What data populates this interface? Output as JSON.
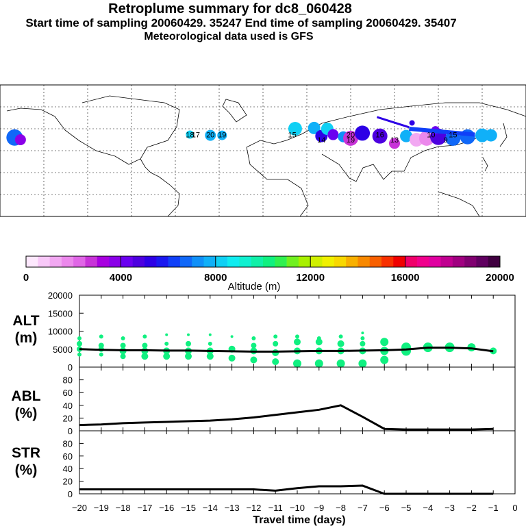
{
  "header": {
    "title": "Retroplume summary for dc8_060428",
    "sampling_line": "Start time of sampling 20060429. 35247     End time of sampling 20060429. 35407",
    "met_line": "Meteorological data used is GFS"
  },
  "colorbar": {
    "tick_labels": [
      "0",
      "4000",
      "8000",
      "12000",
      "16000",
      "20000"
    ],
    "label": "Altitude (m)",
    "colors": [
      "#fde8fd",
      "#f8c8f8",
      "#f2a8f2",
      "#ec88ec",
      "#e066e6",
      "#c833d8",
      "#a800e0",
      "#8a00e8",
      "#6a00f0",
      "#4d00e0",
      "#2d00e6",
      "#1a18f0",
      "#1040f8",
      "#1068f8",
      "#1090f8",
      "#10b0f8",
      "#10d0f4",
      "#10ecf0",
      "#10f0d0",
      "#10f0a8",
      "#10f080",
      "#30f050",
      "#70f020",
      "#a8f000",
      "#d0f000",
      "#f0f000",
      "#f8d800",
      "#f8b000",
      "#f88800",
      "#f86000",
      "#f83000",
      "#f00000",
      "#f0006a",
      "#f0008c",
      "#e000a0",
      "#c00090",
      "#a00080",
      "#800070",
      "#600060",
      "#400040"
    ]
  },
  "panels": {
    "alt_label": "ALT\n(m)",
    "abl_label": "ABL\n(%)",
    "str_label": "STR\n(%)",
    "x_label": "Travel time (days)"
  },
  "map_labels": [
    {
      "t": "18",
      "lon": -50
    },
    {
      "t": "17",
      "lon": -46
    },
    {
      "t": "20",
      "lon": -36
    },
    {
      "t": "19",
      "lon": -28
    },
    {
      "t": "15",
      "lon": 20
    },
    {
      "t": "14",
      "lon": 40
    },
    {
      "t": "20",
      "lon": 60
    },
    {
      "t": "19",
      "lon": 60
    },
    {
      "t": "16",
      "lon": 80
    },
    {
      "t": "13",
      "lon": 90
    },
    {
      "t": "10",
      "lon": 115
    },
    {
      "t": "9",
      "lon": 125
    },
    {
      "t": "15",
      "lon": 130
    }
  ],
  "map_markers": [
    {
      "lon": -170,
      "lat": 18,
      "r": 12,
      "c": "#1068f8"
    },
    {
      "lon": -166,
      "lat": 15,
      "r": 8,
      "c": "#8a00e8"
    },
    {
      "lon": -50,
      "lat": 22,
      "r": 6,
      "c": "#10d0f4"
    },
    {
      "lon": -36,
      "lat": 21,
      "r": 8,
      "c": "#10b0f8"
    },
    {
      "lon": -28,
      "lat": 21,
      "r": 7,
      "c": "#10b0f8"
    },
    {
      "lon": 22,
      "lat": 30,
      "r": 10,
      "c": "#10d0f4"
    },
    {
      "lon": 35,
      "lat": 31,
      "r": 9,
      "c": "#10b0f8"
    },
    {
      "lon": 40,
      "lat": 20,
      "r": 9,
      "c": "#2d00e6"
    },
    {
      "lon": 44,
      "lat": 30,
      "r": 9,
      "c": "#10d0f4"
    },
    {
      "lon": 48,
      "lat": 22,
      "r": 8,
      "c": "#6a00f0"
    },
    {
      "lon": 55,
      "lat": 19,
      "r": 8,
      "c": "#1090f8"
    },
    {
      "lon": 60,
      "lat": 17,
      "r": 11,
      "c": "#c833d8"
    },
    {
      "lon": 68,
      "lat": 24,
      "r": 11,
      "c": "#2d00e6"
    },
    {
      "lon": 80,
      "lat": 20,
      "r": 11,
      "c": "#4d00e0"
    },
    {
      "lon": 90,
      "lat": 10,
      "r": 8,
      "c": "#c833d8"
    },
    {
      "lon": 98,
      "lat": 20,
      "r": 9,
      "c": "#10b0f8"
    },
    {
      "lon": 105,
      "lat": 15,
      "r": 10,
      "c": "#f2a8f2"
    },
    {
      "lon": 112,
      "lat": 17,
      "r": 11,
      "c": "#ec88ec"
    },
    {
      "lon": 120,
      "lat": 19,
      "r": 12,
      "c": "#4d00e0"
    },
    {
      "lon": 130,
      "lat": 17,
      "r": 11,
      "c": "#1068f8"
    },
    {
      "lon": 140,
      "lat": 19,
      "r": 11,
      "c": "#1068f8"
    },
    {
      "lon": 150,
      "lat": 21,
      "r": 10,
      "c": "#10b0f8"
    },
    {
      "lon": 156,
      "lat": 21,
      "r": 9,
      "c": "#10b0f8"
    },
    {
      "lon": 102,
      "lat": 38,
      "r": 4,
      "c": "#2d00e6"
    },
    {
      "lon": 118,
      "lat": 28,
      "r": 6,
      "c": "#6a00f0"
    }
  ],
  "chart_data": {
    "type": "line",
    "x_axis": {
      "label": "Travel time (days)",
      "xlim": [
        -20,
        0
      ],
      "ticks": [
        -20,
        -19,
        -18,
        -17,
        -16,
        -15,
        -14,
        -13,
        -12,
        -11,
        -10,
        -9,
        -8,
        -7,
        -6,
        -5,
        -4,
        -3,
        -2,
        -1,
        0
      ],
      "tick_labels": [
        "−20",
        "−19",
        "−18",
        "−17",
        "−16",
        "−15",
        "−14",
        "−13",
        "−12",
        "−11",
        "−10",
        "−9",
        "−8",
        "−7",
        "−6",
        "−5",
        "−4",
        "−3",
        "−2",
        "−1",
        "0"
      ]
    },
    "alt": {
      "ylim": [
        0,
        20000
      ],
      "ticks": [
        0,
        5000,
        10000,
        15000,
        20000
      ],
      "tick_labels": [
        "0",
        "5000",
        "10000",
        "15000",
        "20000"
      ],
      "x": [
        -20,
        -19,
        -18,
        -17,
        -16,
        -15,
        -14,
        -13,
        -12,
        -11,
        -10,
        -9,
        -8,
        -7,
        -6,
        -5,
        -4,
        -3,
        -2,
        -1
      ],
      "mean": [
        5000,
        4800,
        4700,
        4700,
        4600,
        4600,
        4500,
        4400,
        4300,
        4300,
        4400,
        4500,
        4500,
        4600,
        4700,
        4900,
        5400,
        5400,
        5200,
        4400
      ],
      "dots": [
        {
          "x": -20,
          "y": [
            8000,
            6500,
            5000,
            3500
          ],
          "r": [
            3,
            4,
            4,
            3
          ]
        },
        {
          "x": -19,
          "y": [
            8500,
            6000,
            5000,
            3500
          ],
          "r": [
            3,
            4,
            4,
            3
          ]
        },
        {
          "x": -18,
          "y": [
            8000,
            6000,
            4500,
            3000
          ],
          "r": [
            3,
            4,
            5,
            4
          ]
        },
        {
          "x": -17,
          "y": [
            8500,
            6000,
            4500,
            3000
          ],
          "r": [
            3,
            4,
            5,
            5
          ]
        },
        {
          "x": -16,
          "y": [
            9000,
            6500,
            4500,
            3000
          ],
          "r": [
            2,
            3,
            5,
            5
          ]
        },
        {
          "x": -15,
          "y": [
            9000,
            6500,
            4500,
            3000
          ],
          "r": [
            2,
            4,
            5,
            5
          ]
        },
        {
          "x": -14,
          "y": [
            9000,
            6500,
            4500,
            3000
          ],
          "r": [
            2,
            3,
            5,
            5
          ]
        },
        {
          "x": -13,
          "y": [
            8500,
            5000,
            2500
          ],
          "r": [
            2,
            5,
            5
          ]
        },
        {
          "x": -12,
          "y": [
            8000,
            6000,
            4500,
            2000
          ],
          "r": [
            3,
            4,
            5,
            5
          ]
        },
        {
          "x": -11,
          "y": [
            8500,
            6500,
            4000,
            1500
          ],
          "r": [
            3,
            4,
            5,
            5
          ]
        },
        {
          "x": -10,
          "y": [
            8500,
            7000,
            4500,
            1000
          ],
          "r": [
            3,
            5,
            5,
            6
          ]
        },
        {
          "x": -9,
          "y": [
            8000,
            7000,
            4500,
            1000
          ],
          "r": [
            3,
            5,
            5,
            6
          ]
        },
        {
          "x": -8,
          "y": [
            8500,
            6500,
            4500,
            1000
          ],
          "r": [
            3,
            5,
            5,
            6
          ]
        },
        {
          "x": -7,
          "y": [
            9500,
            8000,
            6500,
            4500,
            1000
          ],
          "r": [
            2,
            3,
            4,
            5,
            6
          ]
        },
        {
          "x": -6,
          "y": [
            7000,
            4500,
            2000
          ],
          "r": [
            6,
            6,
            6
          ]
        },
        {
          "x": -5,
          "y": [
            5500,
            4500
          ],
          "r": [
            7,
            7
          ]
        },
        {
          "x": -4,
          "y": [
            5500
          ],
          "r": [
            7
          ]
        },
        {
          "x": -3,
          "y": [
            5500
          ],
          "r": [
            7
          ]
        },
        {
          "x": -2,
          "y": [
            5500
          ],
          "r": [
            6
          ]
        },
        {
          "x": -1,
          "y": [
            4500
          ],
          "r": [
            5
          ]
        }
      ]
    },
    "abl": {
      "ylim": [
        0,
        100
      ],
      "ticks": [
        0,
        20,
        40,
        60,
        80
      ],
      "tick_labels": [
        "0",
        "20",
        "40",
        "60",
        "80"
      ],
      "x": [
        -20,
        -19,
        -18,
        -17,
        -16,
        -15,
        -14,
        -13,
        -12,
        -11,
        -10,
        -9,
        -8,
        -7,
        -6,
        -5,
        -4,
        -3,
        -2,
        -1
      ],
      "y": [
        9,
        10,
        12,
        13,
        14,
        15,
        16,
        18,
        21,
        25,
        29,
        33,
        40,
        22,
        3,
        2,
        2,
        2,
        2,
        3
      ]
    },
    "str": {
      "ylim": [
        0,
        100
      ],
      "ticks": [
        0,
        20,
        40,
        60,
        80
      ],
      "tick_labels": [
        "0",
        "20",
        "40",
        "60",
        "80"
      ],
      "x": [
        -20,
        -19,
        -18,
        -17,
        -16,
        -15,
        -14,
        -13,
        -12,
        -11,
        -10,
        -9,
        -8,
        -7,
        -6,
        -5,
        -4,
        -3,
        -2,
        -1
      ],
      "y": [
        7,
        7,
        7,
        7,
        7,
        7,
        7,
        7,
        7,
        5,
        9,
        12,
        12,
        13,
        0,
        0,
        0,
        0,
        0,
        0
      ]
    }
  }
}
